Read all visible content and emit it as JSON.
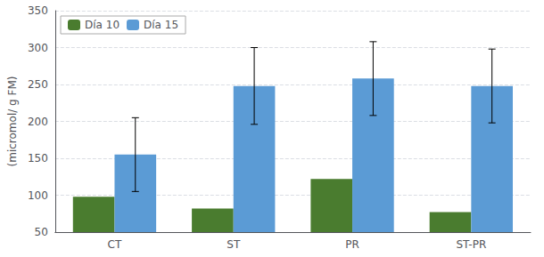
{
  "chart_data": {
    "type": "bar",
    "categories": [
      "CT",
      "ST",
      "PR",
      "ST-PR"
    ],
    "series": [
      {
        "name": "Día 10",
        "color": "#4a7c2f",
        "values": [
          98,
          82,
          122,
          77
        ]
      },
      {
        "name": "Día 15",
        "color": "#5b9bd5",
        "values": [
          155,
          248,
          258,
          248
        ],
        "errors": [
          50,
          52,
          50,
          50
        ]
      }
    ],
    "ylabel": "(micromol/ g FM)",
    "ylim": [
      50,
      350
    ],
    "yticks": [
      50,
      100,
      150,
      200,
      250,
      300,
      350
    ],
    "grid": true,
    "legend": "upper left"
  }
}
